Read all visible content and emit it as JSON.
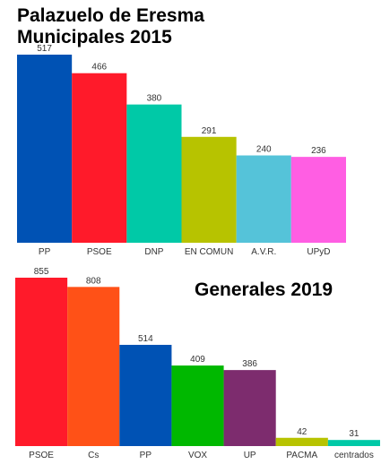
{
  "chart_data": [
    {
      "type": "bar",
      "title_lines": [
        "Palazuelo de Eresma",
        "Municipales 2015"
      ],
      "categories": [
        "PP",
        "PSOE",
        "DNP",
        "EN COMUN",
        "A.V.R.",
        "UPyD"
      ],
      "values": [
        517,
        466,
        380,
        291,
        240,
        236
      ],
      "colors": [
        "#0052b4",
        "#ff1a2a",
        "#00c9a7",
        "#b7c300",
        "#55c3d9",
        "#ff5ee3"
      ],
      "grid": false,
      "legend": "none"
    },
    {
      "type": "bar",
      "title_lines": [
        "Generales 2019"
      ],
      "categories": [
        "PSOE",
        "Cs",
        "PP",
        "VOX",
        "UP",
        "PACMA",
        "centrados"
      ],
      "values": [
        855,
        808,
        514,
        409,
        386,
        42,
        31
      ],
      "colors": [
        "#ff1a2a",
        "#ff5117",
        "#0052b4",
        "#00b800",
        "#7d2c6e",
        "#b7c300",
        "#00c9a7"
      ],
      "grid": false,
      "legend": "none"
    }
  ]
}
